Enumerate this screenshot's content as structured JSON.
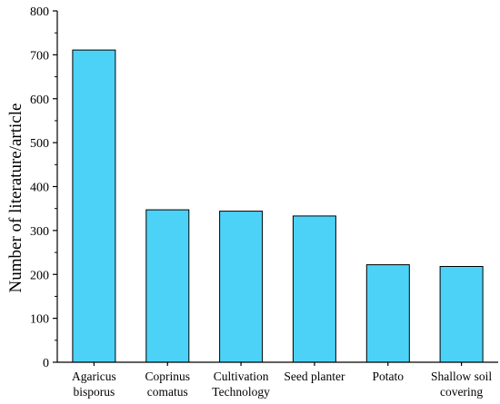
{
  "chart_data": {
    "type": "bar",
    "title": "",
    "xlabel": "",
    "ylabel": "Number of literature/article",
    "categories": [
      [
        "Agaricus",
        "bisporus"
      ],
      [
        "Coprinus",
        "comatus"
      ],
      [
        "Cultivation",
        "Technology"
      ],
      [
        "Seed planter"
      ],
      [
        "Potato"
      ],
      [
        "Shallow soil",
        "covering"
      ]
    ],
    "values": [
      711,
      347,
      344,
      333,
      222,
      218
    ],
    "ylim": [
      0,
      800
    ],
    "yticks": [
      "0",
      "100",
      "200",
      "300",
      "400",
      "500",
      "600",
      "700",
      "800"
    ],
    "grid": false,
    "legend": "none",
    "colors": {
      "bar_fill": "#4dd2f7",
      "bar_stroke": "#000000",
      "axis": "#000000"
    }
  }
}
